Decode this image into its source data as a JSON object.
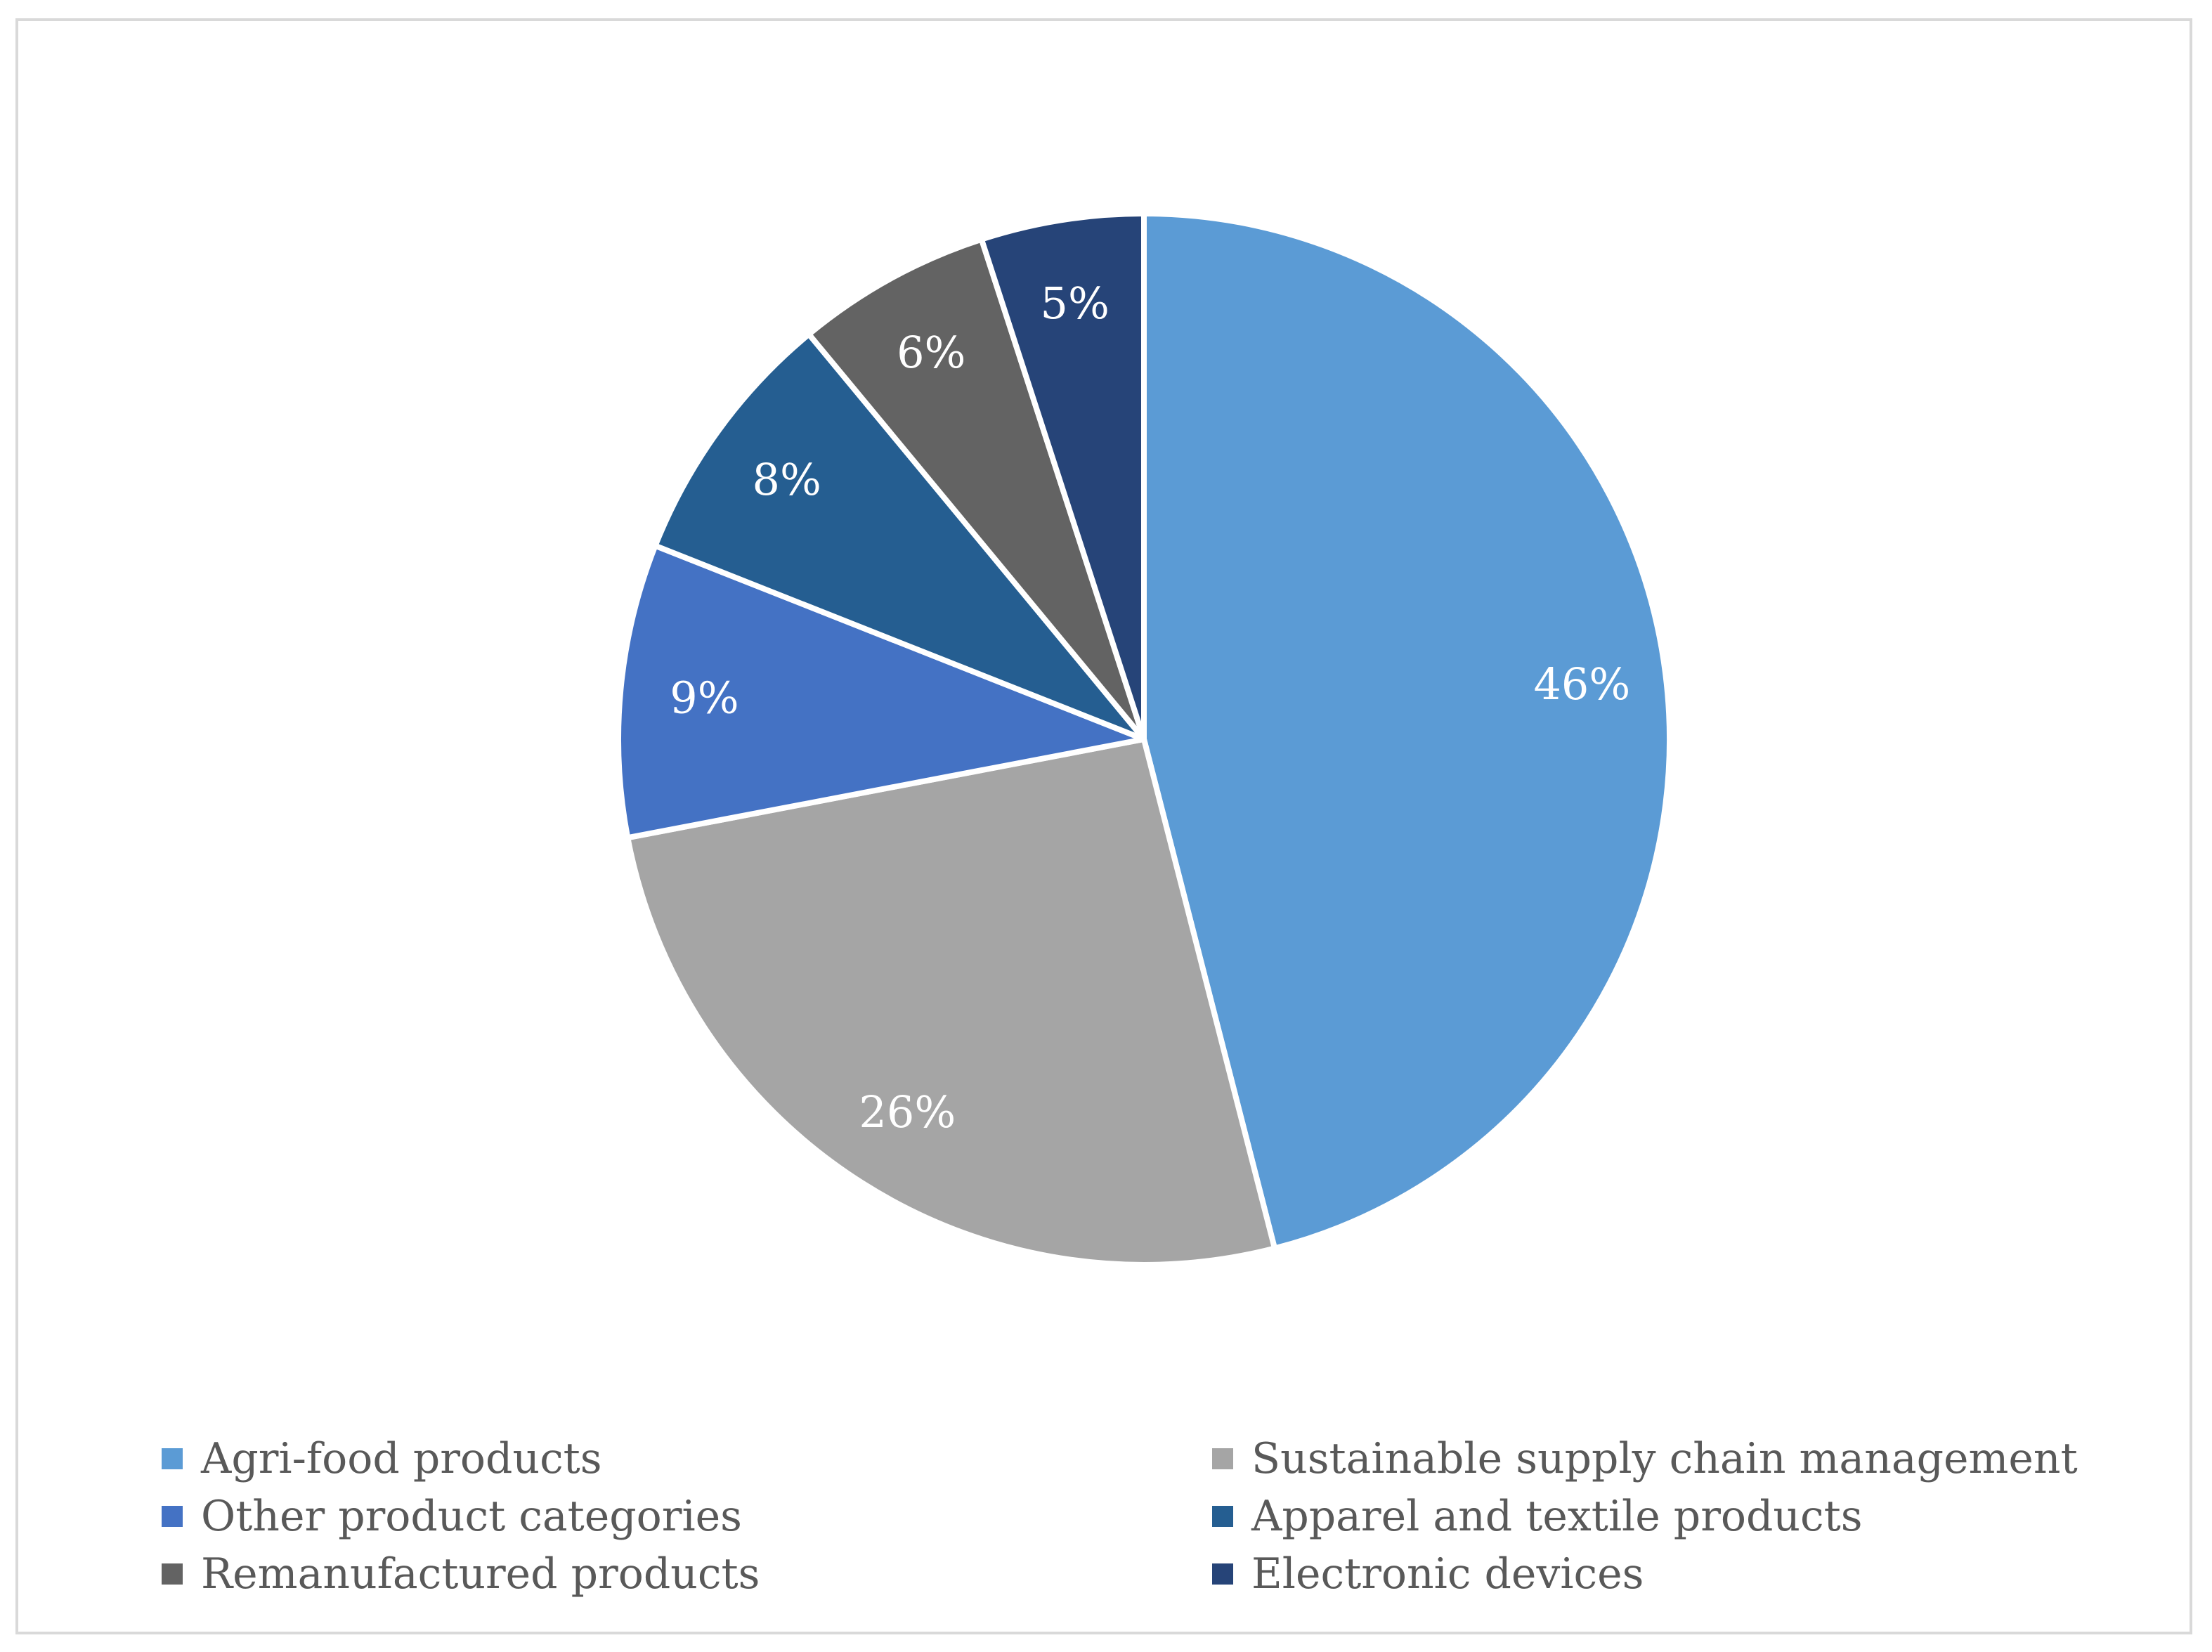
{
  "chart_data": {
    "type": "pie",
    "title": "",
    "start_angle_deg": 0,
    "direction": "clockwise",
    "unit": "%",
    "slices": [
      {
        "name": "Agri-food products",
        "value": 46,
        "label": "46%",
        "color": "#5B9BD5"
      },
      {
        "name": "Sustainable supply chain management",
        "value": 26,
        "label": "26%",
        "color": "#A5A5A5"
      },
      {
        "name": "Other product categories",
        "value": 9,
        "label": "9%",
        "color": "#4472C4"
      },
      {
        "name": "Apparel and textile products",
        "value": 8,
        "label": "8%",
        "color": "#255E91"
      },
      {
        "name": "Remanufactured products",
        "value": 6,
        "label": "6%",
        "color": "#636363"
      },
      {
        "name": "Electronic devices",
        "value": 5,
        "label": "5%",
        "color": "#264478"
      }
    ],
    "legend_position": "bottom"
  },
  "legend": {
    "items": [
      {
        "label": "Agri-food products",
        "color": "#5B9BD5"
      },
      {
        "label": "Sustainable supply chain management",
        "color": "#A5A5A5"
      },
      {
        "label": "Other product categories",
        "color": "#4472C4"
      },
      {
        "label": "Apparel and textile products",
        "color": "#255E91"
      },
      {
        "label": "Remanufactured products",
        "color": "#636363"
      },
      {
        "label": "Electronic devices",
        "color": "#264478"
      }
    ]
  },
  "colors": {
    "frame_border": "#d9d9d9",
    "slice_separator": "#ffffff",
    "data_label": "#ffffff",
    "legend_text": "#595959"
  }
}
